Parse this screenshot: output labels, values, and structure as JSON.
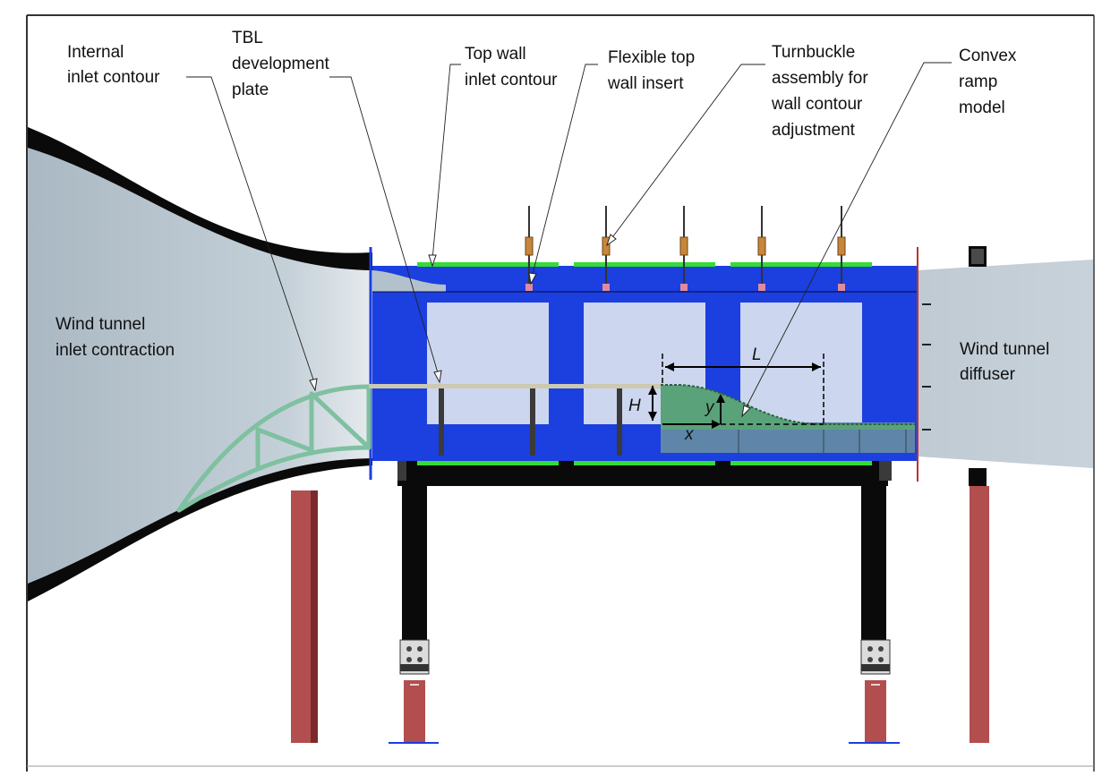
{
  "labels": {
    "internal_inlet_line1": "Internal",
    "internal_inlet_line2": "inlet contour",
    "tbl_line1": "TBL",
    "tbl_line2": "development",
    "tbl_line3": "plate",
    "topwall_line1": "Top wall",
    "topwall_line2": "inlet contour",
    "flex_line1": "Flexible top",
    "flex_line2": "wall insert",
    "turnbuckle_line1": "Turnbuckle",
    "turnbuckle_line2": "assembly for",
    "turnbuckle_line3": "wall contour",
    "turnbuckle_line4": "adjustment",
    "convex_line1": "Convex",
    "convex_line2": "ramp",
    "convex_line3": "model",
    "inlet_line1": "Wind tunnel",
    "inlet_line2": "inlet contraction",
    "diffuser_line1": "Wind tunnel",
    "diffuser_line2": "diffuser"
  },
  "dimensions": {
    "length": "L",
    "height": "H",
    "y_axis": "y",
    "x_axis": "x"
  },
  "colors": {
    "test_section": "#1c3fe0",
    "window": "#ccd6ee",
    "green_strip": "#33dd33",
    "ramp": "#5aa27a",
    "support_leg": "#b24e4e",
    "contraction": "#b3c1cc",
    "black_structure": "#0a0a0a",
    "truss": "#7fc0a0"
  }
}
